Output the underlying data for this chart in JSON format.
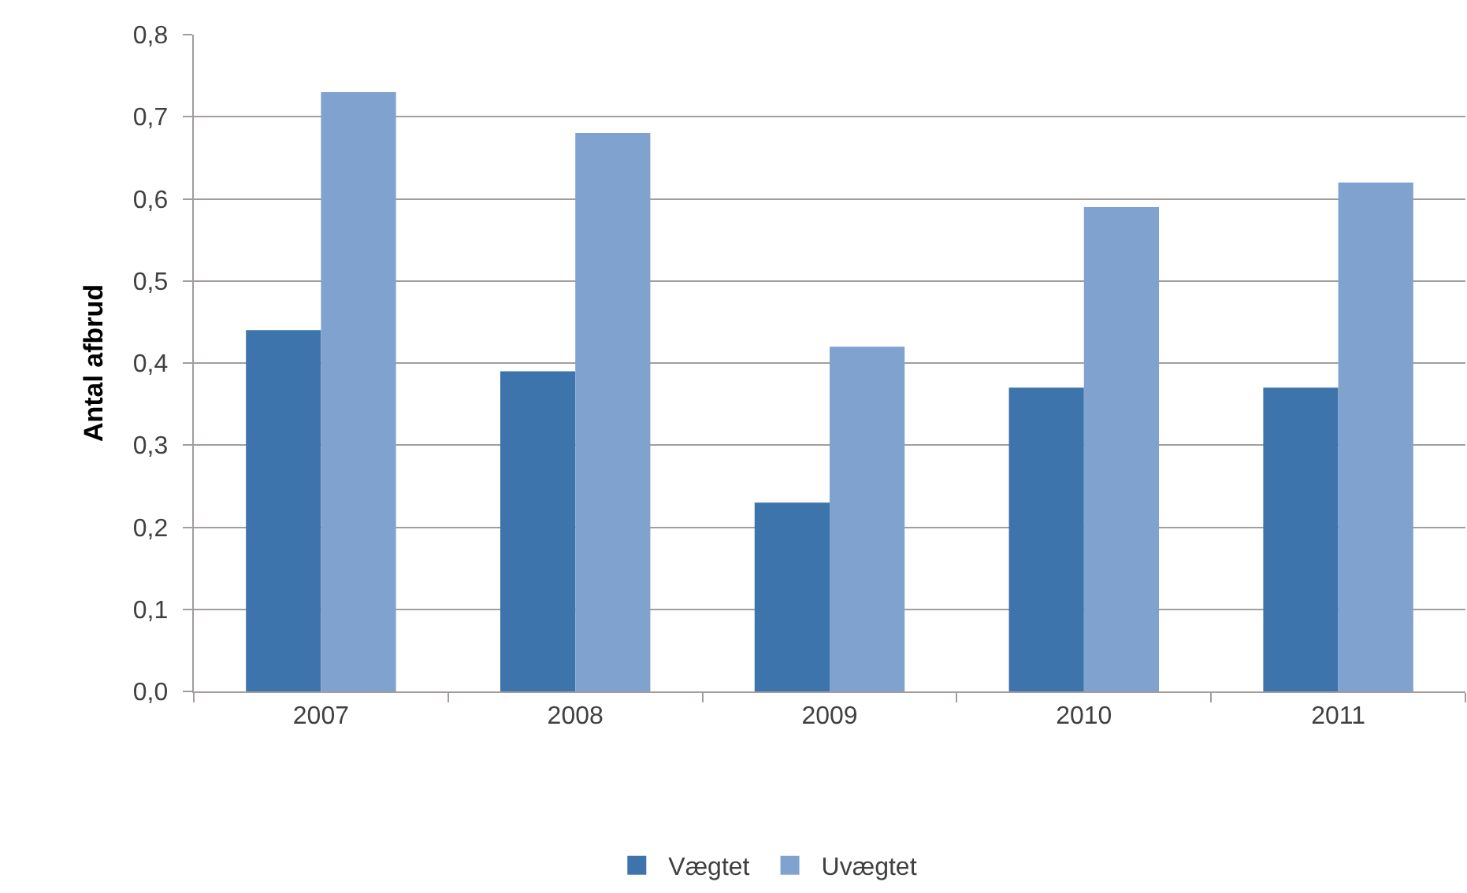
{
  "chart_data": {
    "type": "bar",
    "ylabel": "Antal afbrud",
    "categories": [
      "2007",
      "2008",
      "2009",
      "2010",
      "2011"
    ],
    "series": [
      {
        "name": "Vægtet",
        "color": "#3d74ab",
        "values": [
          0.44,
          0.39,
          0.23,
          0.37,
          0.37
        ]
      },
      {
        "name": "Uvægtet",
        "color": "#80a2cf",
        "values": [
          0.73,
          0.68,
          0.42,
          0.59,
          0.62
        ]
      }
    ],
    "ylim": [
      0,
      0.8
    ],
    "yticks": [
      {
        "value": 0,
        "label": "0,0"
      },
      {
        "value": 0.1,
        "label": "0,1"
      },
      {
        "value": 0.2,
        "label": "0,2"
      },
      {
        "value": 0.3,
        "label": "0,3"
      },
      {
        "value": 0.4,
        "label": "0,4"
      },
      {
        "value": 0.5,
        "label": "0,5"
      },
      {
        "value": 0.6,
        "label": "0,6"
      },
      {
        "value": 0.7,
        "label": "0,7"
      },
      {
        "value": 0.8,
        "label": "0,8"
      }
    ],
    "grid": "y",
    "legend": "bottom"
  }
}
